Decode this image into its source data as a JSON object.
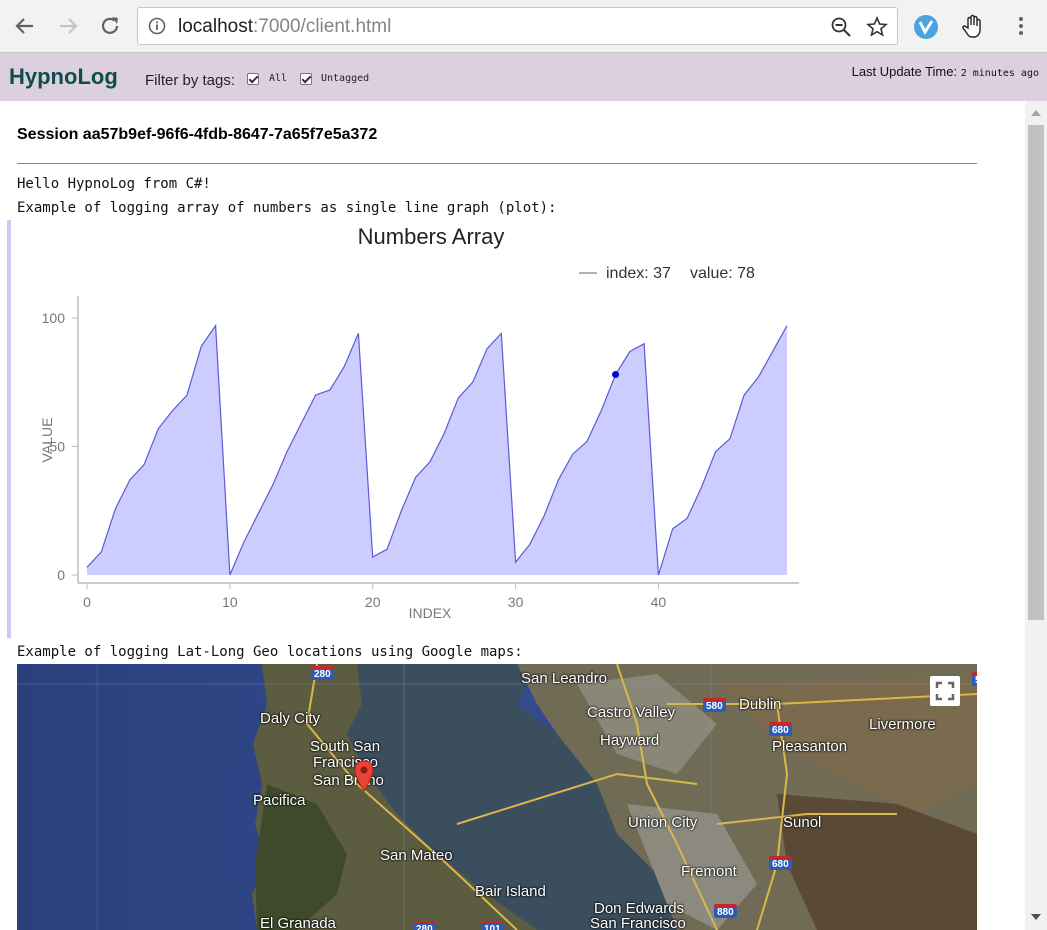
{
  "browser": {
    "url_host": "localhost",
    "url_rest": ":7000/client.html"
  },
  "header": {
    "brand": "HypnoLog",
    "filter_label": "Filter by tags:",
    "tags": [
      {
        "label": "All",
        "checked": true
      },
      {
        "label": "Untagged",
        "checked": true
      }
    ],
    "update_label": "Last Update Time:",
    "update_value": "2 minutes ago"
  },
  "session": {
    "title": "Session aa57b9ef-96f6-4fdb-8647-7a65f7e5a372"
  },
  "logs": {
    "line1": "Hello HypnoLog from C#!",
    "line2": "Example of logging array of numbers as single line graph (plot):",
    "line3": "Example of logging Lat-Long Geo locations using Google maps:"
  },
  "chart_data": {
    "type": "area",
    "title": "Numbers Array",
    "xlabel": "INDEX",
    "ylabel": "VALUE",
    "xlim": [
      0,
      49
    ],
    "ylim": [
      0,
      100
    ],
    "xticks": [
      "0",
      "10",
      "20",
      "30",
      "40"
    ],
    "yticks": [
      "0",
      "50",
      "100"
    ],
    "values": [
      3,
      9,
      26,
      37,
      43,
      57,
      64,
      70,
      89,
      97,
      0,
      13,
      24,
      35,
      48,
      59,
      70,
      72,
      81,
      94,
      7,
      10,
      25,
      38,
      44,
      55,
      69,
      75,
      88,
      94,
      5,
      12,
      23,
      37,
      47,
      52,
      64,
      78,
      87,
      90,
      0,
      18,
      22,
      34,
      48,
      53,
      70,
      77,
      87,
      97
    ],
    "legend": {
      "index_label": "index: 37",
      "value_label": "value: 78"
    },
    "highlight_index": 37,
    "colors": {
      "line": "#5b5bd6",
      "fill": "#ccccff",
      "point": "#0000d8"
    }
  },
  "map": {
    "places": [
      {
        "label": "San Leandro"
      },
      {
        "label": "Castro Valley"
      },
      {
        "label": "Dublin"
      },
      {
        "label": "Livermore"
      },
      {
        "label": "Daly City"
      },
      {
        "label": "South San"
      },
      {
        "label": "Francisco"
      },
      {
        "label": "San Bruno"
      },
      {
        "label": "Hayward"
      },
      {
        "label": "Pleasanton"
      },
      {
        "label": "Pacifica"
      },
      {
        "label": "Union City"
      },
      {
        "label": "Sunol"
      },
      {
        "label": "San Mateo"
      },
      {
        "label": "Fremont"
      },
      {
        "label": "Bair Island"
      },
      {
        "label": "Don Edwards"
      },
      {
        "label": "San Francisco"
      },
      {
        "label": "El Granada"
      }
    ],
    "shields": [
      "280",
      "580",
      "680",
      "680",
      "580",
      "880",
      "280",
      "101"
    ],
    "colors": {
      "water": "#2d4785",
      "land": "#5a5a3e",
      "road": "#d8b84a"
    }
  }
}
